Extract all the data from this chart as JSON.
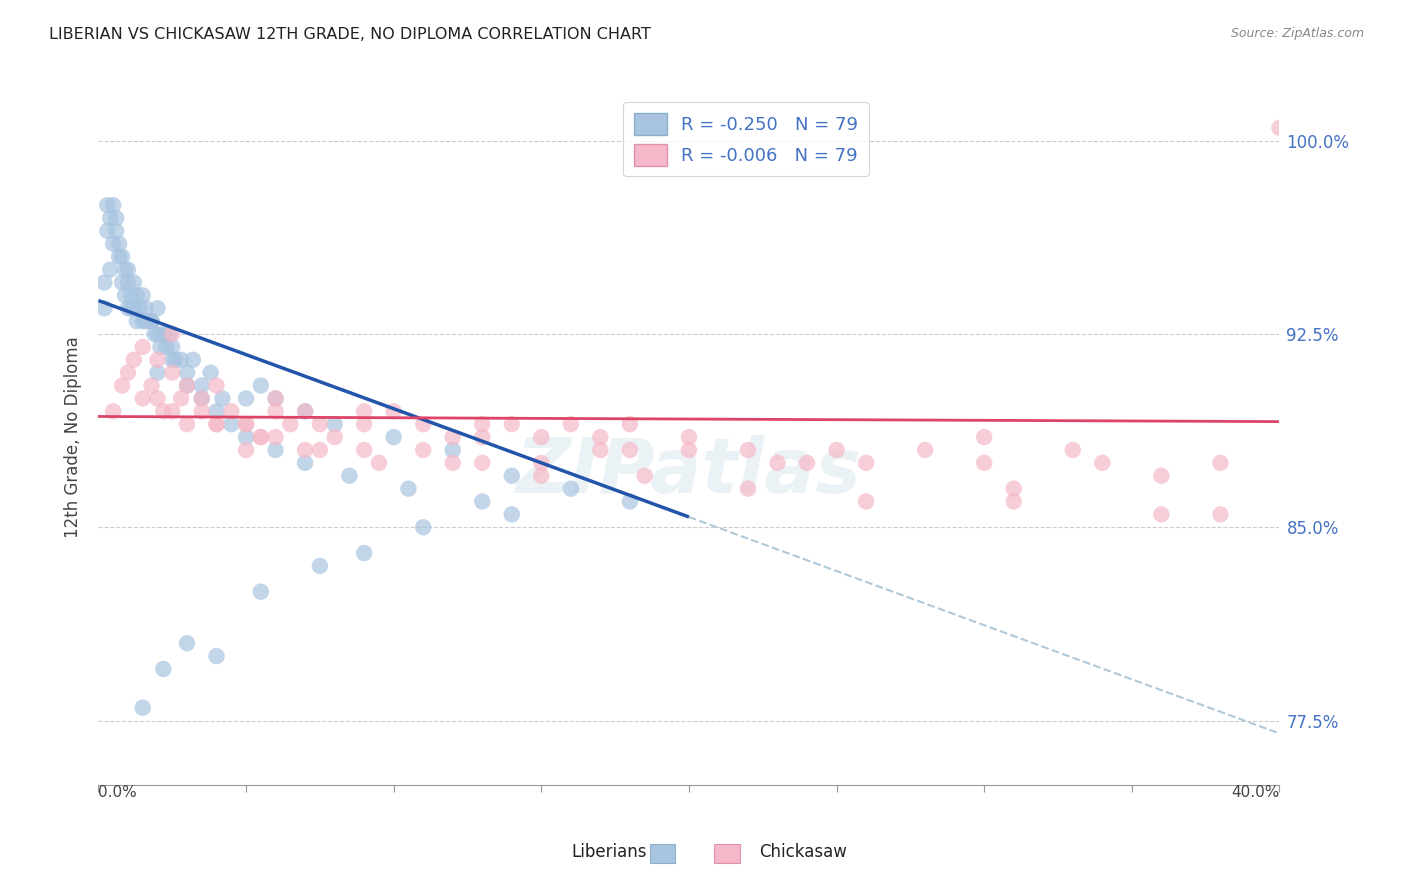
{
  "title": "LIBERIAN VS CHICKASAW 12TH GRADE, NO DIPLOMA CORRELATION CHART",
  "source": "Source: ZipAtlas.com",
  "ylabel": "12th Grade, No Diploma",
  "xlim": [
    0.0,
    40.0
  ],
  "ylim": [
    75.0,
    102.0
  ],
  "yticks": [
    77.5,
    85.0,
    92.5,
    100.0
  ],
  "ytick_labels": [
    "77.5%",
    "85.0%",
    "92.5%",
    "100.0%"
  ],
  "legend_liberian_r": "R = -0.250",
  "legend_liberian_n": "N = 79",
  "legend_chickasaw_r": "R = -0.006",
  "legend_chickasaw_n": "N = 79",
  "liberian_color": "#a8c4e0",
  "chickasaw_color": "#f5b8c8",
  "liberian_line_color": "#2255aa",
  "chickasaw_line_color": "#dd4466",
  "trend_line_color": "#b0c8d8",
  "background_color": "#ffffff",
  "watermark": "ZIPatlas",
  "liberian_intercept": 93.8,
  "liberian_slope": -0.42,
  "chickasaw_intercept": 89.3,
  "chickasaw_slope": -0.005,
  "lib_x": [
    0.2,
    0.2,
    0.3,
    0.3,
    0.4,
    0.4,
    0.5,
    0.5,
    0.6,
    0.6,
    0.7,
    0.7,
    0.8,
    0.8,
    0.9,
    0.9,
    1.0,
    1.0,
    1.0,
    1.1,
    1.1,
    1.2,
    1.2,
    1.3,
    1.3,
    1.4,
    1.5,
    1.5,
    1.6,
    1.6,
    1.7,
    1.8,
    1.9,
    2.0,
    2.0,
    2.1,
    2.2,
    2.3,
    2.4,
    2.5,
    2.6,
    2.8,
    3.0,
    3.2,
    3.5,
    3.8,
    4.2,
    5.0,
    5.5,
    6.0,
    7.0,
    8.0,
    10.0,
    12.0,
    14.0,
    16.0,
    18.0,
    1.8,
    2.0,
    2.5,
    3.0,
    3.5,
    4.0,
    4.5,
    5.0,
    6.0,
    7.0,
    8.5,
    10.5,
    13.0,
    1.5,
    2.2,
    3.0,
    4.0,
    5.5,
    7.5,
    9.0,
    11.0,
    14.0
  ],
  "lib_y": [
    93.5,
    94.5,
    96.5,
    97.5,
    95.0,
    97.0,
    96.0,
    97.5,
    96.5,
    97.0,
    95.5,
    96.0,
    94.5,
    95.5,
    94.0,
    95.0,
    93.5,
    94.5,
    95.0,
    93.5,
    94.0,
    93.5,
    94.5,
    93.0,
    94.0,
    93.5,
    93.0,
    94.0,
    93.0,
    93.5,
    93.0,
    93.0,
    92.5,
    92.5,
    93.5,
    92.0,
    92.5,
    92.0,
    92.5,
    92.0,
    91.5,
    91.5,
    91.0,
    91.5,
    90.5,
    91.0,
    90.0,
    90.0,
    90.5,
    90.0,
    89.5,
    89.0,
    88.5,
    88.0,
    87.0,
    86.5,
    86.0,
    93.0,
    91.0,
    91.5,
    90.5,
    90.0,
    89.5,
    89.0,
    88.5,
    88.0,
    87.5,
    87.0,
    86.5,
    86.0,
    78.0,
    79.5,
    80.5,
    80.0,
    82.5,
    83.5,
    84.0,
    85.0,
    85.5
  ],
  "chick_x": [
    0.5,
    0.8,
    1.0,
    1.2,
    1.5,
    1.8,
    2.0,
    2.2,
    2.5,
    2.8,
    3.0,
    3.5,
    4.0,
    4.5,
    5.0,
    5.5,
    6.0,
    6.5,
    7.0,
    7.5,
    8.0,
    9.0,
    10.0,
    11.0,
    12.0,
    13.0,
    14.0,
    15.0,
    16.0,
    17.0,
    18.0,
    20.0,
    22.0,
    25.0,
    28.0,
    30.0,
    33.0,
    36.0,
    38.0,
    40.0,
    2.0,
    3.0,
    4.0,
    5.0,
    6.0,
    7.5,
    9.0,
    11.0,
    13.0,
    15.0,
    17.0,
    20.0,
    23.0,
    26.0,
    30.0,
    34.0,
    1.5,
    2.5,
    3.5,
    5.0,
    7.0,
    9.5,
    12.0,
    15.0,
    18.5,
    22.0,
    26.0,
    31.0,
    36.0,
    4.0,
    6.0,
    9.0,
    13.0,
    18.0,
    24.0,
    31.0,
    38.0,
    2.5,
    5.5
  ],
  "chick_y": [
    89.5,
    90.5,
    91.0,
    91.5,
    90.0,
    90.5,
    90.0,
    89.5,
    89.5,
    90.0,
    89.0,
    89.5,
    89.0,
    89.5,
    89.0,
    88.5,
    89.5,
    89.0,
    89.5,
    89.0,
    88.5,
    89.0,
    89.5,
    89.0,
    88.5,
    88.5,
    89.0,
    88.5,
    89.0,
    88.5,
    89.0,
    88.5,
    88.0,
    88.0,
    88.0,
    88.5,
    88.0,
    87.0,
    87.5,
    100.5,
    91.5,
    90.5,
    89.0,
    88.0,
    88.5,
    88.0,
    88.0,
    88.0,
    87.5,
    87.5,
    88.0,
    88.0,
    87.5,
    87.5,
    87.5,
    87.5,
    92.0,
    91.0,
    90.0,
    89.0,
    88.0,
    87.5,
    87.5,
    87.0,
    87.0,
    86.5,
    86.0,
    86.0,
    85.5,
    90.5,
    90.0,
    89.5,
    89.0,
    88.0,
    87.5,
    86.5,
    85.5,
    92.5,
    88.5
  ]
}
